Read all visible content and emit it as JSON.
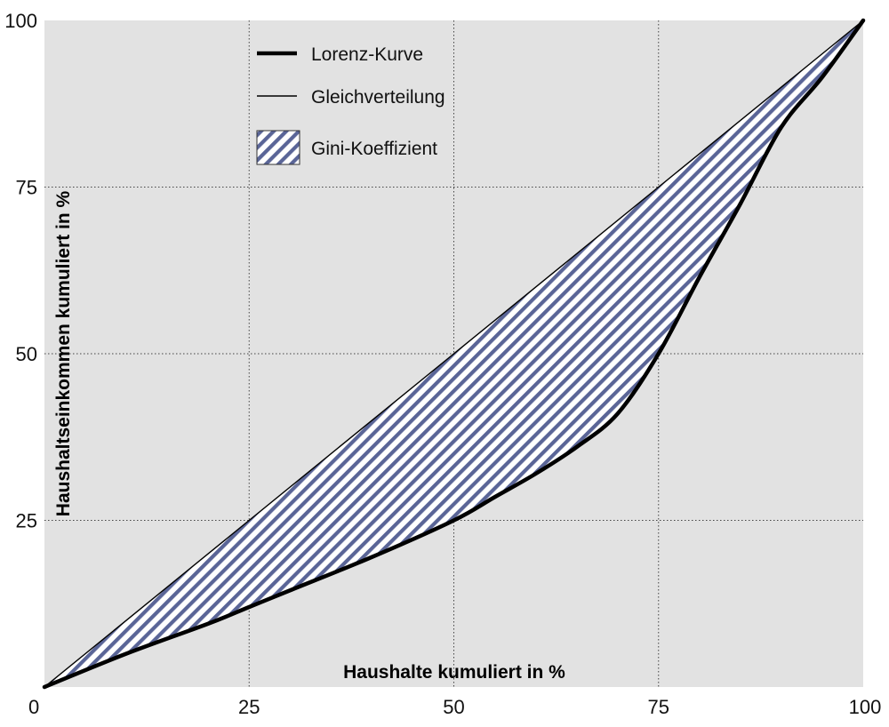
{
  "chart_data": {
    "type": "area",
    "xlabel": "Haushalte kumuliert in %",
    "ylabel": "Haushaltseinkommen kumuliert in %",
    "xlim": [
      0,
      100
    ],
    "ylim": [
      0,
      100
    ],
    "xticks": [
      "0",
      "25",
      "50",
      "75",
      "100"
    ],
    "yticks": [
      "25",
      "50",
      "75",
      "100"
    ],
    "grid": true,
    "legend_position": "top-left",
    "colors": {
      "background": "#e2e2e2",
      "hatch": "#5a6597",
      "lorenz": "#000000",
      "equality": "#000000"
    },
    "series": [
      {
        "name": "Lorenz-Kurve",
        "x": [
          0,
          10,
          20,
          25,
          30,
          40,
          50,
          55,
          60,
          65,
          70,
          75,
          80,
          85,
          90,
          95,
          100
        ],
        "y": [
          0,
          5,
          9.5,
          12,
          14.5,
          19.5,
          25,
          28.5,
          32,
          36,
          41,
          50,
          61.5,
          72.5,
          84,
          91.5,
          100
        ]
      },
      {
        "name": "Gleichverteilung",
        "x": [
          0,
          100
        ],
        "y": [
          0,
          100
        ]
      },
      {
        "name": "Gini-Koeffizient",
        "between": [
          "Gleichverteilung",
          "Lorenz-Kurve"
        ]
      }
    ]
  }
}
